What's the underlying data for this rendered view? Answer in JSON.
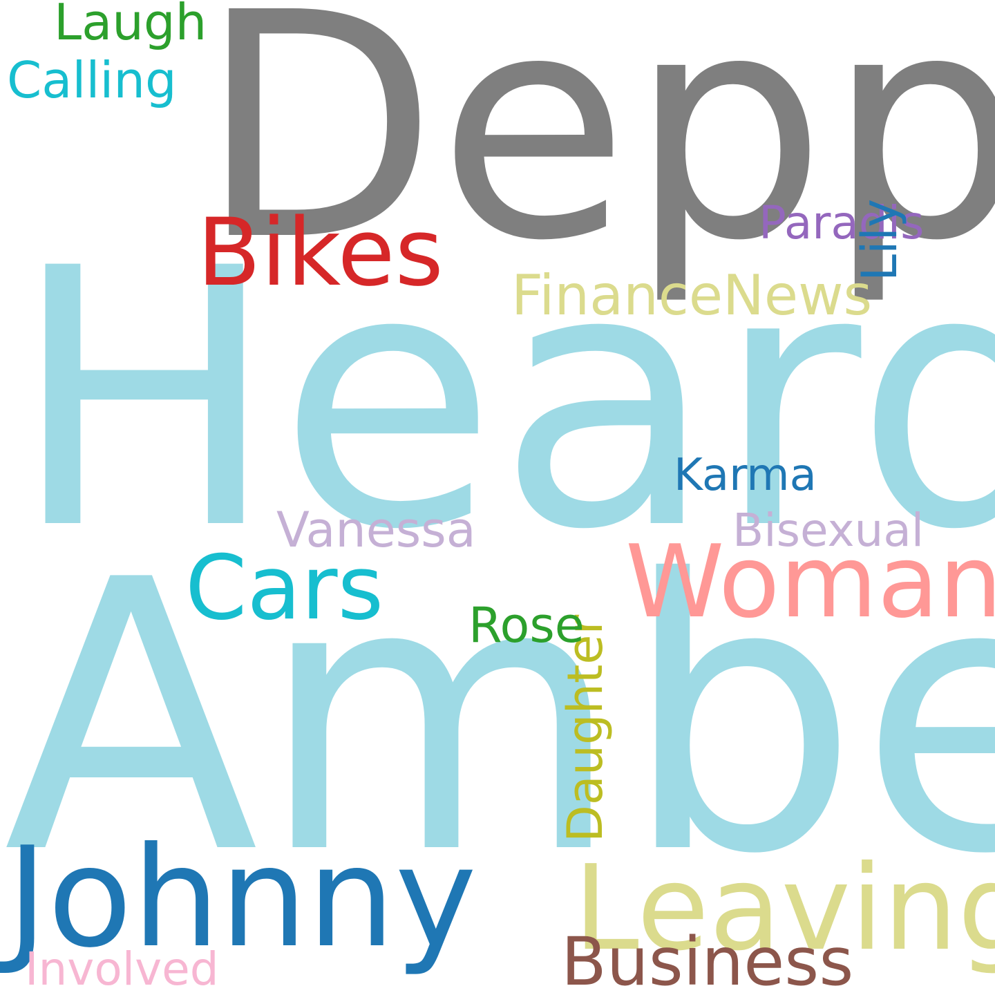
{
  "words": [
    {
      "id": "depp",
      "text": "Depp",
      "color": "#7f7f7f"
    },
    {
      "id": "heard",
      "text": "Heard",
      "color": "#9edae5"
    },
    {
      "id": "amber",
      "text": "Amber",
      "color": "#9edae5"
    },
    {
      "id": "johnny",
      "text": "Johnny",
      "color": "#1f77b4"
    },
    {
      "id": "leaving",
      "text": "Leaving",
      "color": "#dbdb8d"
    },
    {
      "id": "woman",
      "text": "Woman",
      "color": "#ff9896"
    },
    {
      "id": "bikes",
      "text": "Bikes",
      "color": "#d62728"
    },
    {
      "id": "cars",
      "text": "Cars",
      "color": "#17becf"
    },
    {
      "id": "business",
      "text": "Business",
      "color": "#8c564b"
    },
    {
      "id": "financenews",
      "text": "FinanceNews",
      "color": "#dbdb8d"
    },
    {
      "id": "laugh",
      "text": "Laugh",
      "color": "#2ca02c"
    },
    {
      "id": "calling",
      "text": "Calling",
      "color": "#17becf"
    },
    {
      "id": "paradis",
      "text": "Paradis",
      "color": "#9467bd"
    },
    {
      "id": "lily",
      "text": "Lily",
      "color": "#1f77b4"
    },
    {
      "id": "daughter",
      "text": "Daughter",
      "color": "#bcbd22"
    },
    {
      "id": "karma",
      "text": "Karma",
      "color": "#1f77b4"
    },
    {
      "id": "vanessa",
      "text": "Vanessa",
      "color": "#c5b0d5"
    },
    {
      "id": "bisexual",
      "text": "Bisexual",
      "color": "#c5b0d5"
    },
    {
      "id": "rose",
      "text": "Rose",
      "color": "#2ca02c"
    },
    {
      "id": "involved",
      "text": "Involved",
      "color": "#f7b6d2"
    }
  ]
}
